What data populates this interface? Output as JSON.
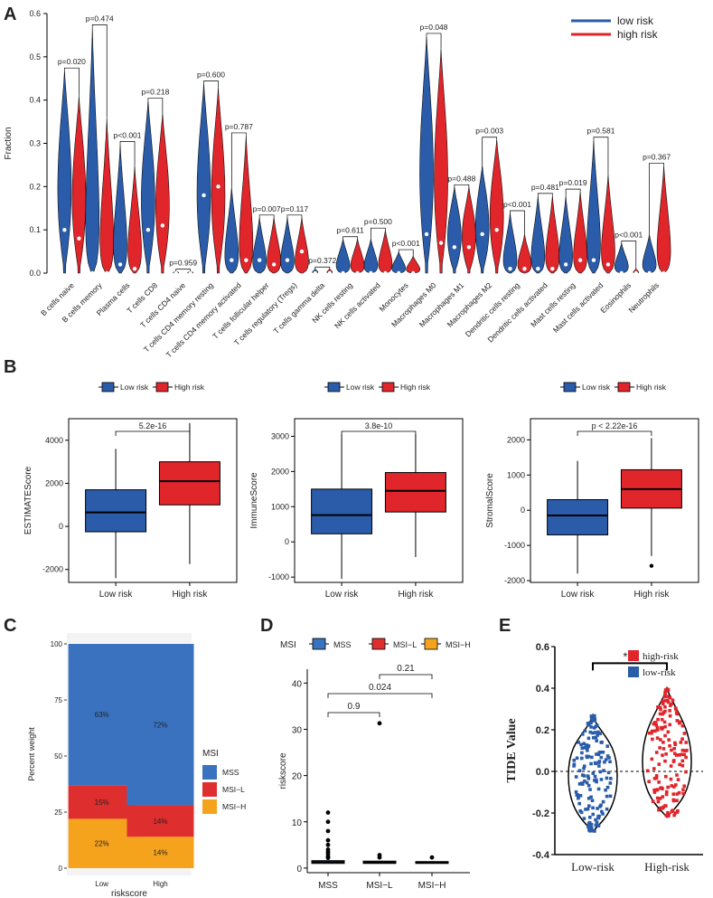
{
  "colors": {
    "low": "#2a5caa",
    "high": "#e0252b",
    "mss": "#3a72c0",
    "msil": "#df2e2e",
    "msih": "#f5a31d",
    "grid": "#e6e6e6",
    "panel_bg": "#f3f3f3"
  },
  "chart_data": [
    {
      "panel": "A",
      "type": "violin",
      "ylabel": "Fraction",
      "ylim": [
        0,
        0.6
      ],
      "yticks": [
        "0.0",
        "0.1",
        "0.2",
        "0.3",
        "0.4",
        "0.5",
        "0.6"
      ],
      "legend": [
        "low  risk",
        "high risk"
      ],
      "categories": [
        "B cells naive",
        "B cells memory",
        "Plasma cells",
        "T cells CD8",
        "T cells CD4 naive",
        "T cells CD4 memory resting",
        "T cells CD4 memory activated",
        "T cells follicular helper",
        "T cells regulatory (Tregs)",
        "T cells gamma delta",
        "NK cells resting",
        "NK cells activated",
        "Monocytes",
        "Macrophages M0",
        "Macrophages M1",
        "Macrophages M2",
        "Dendritic cells resting",
        "Dendritic cells activated",
        "Mast cells resting",
        "Mast cells activated",
        "Eosinophils",
        "Neutrophils"
      ],
      "pvalues": [
        "p=0.020",
        "p=0.474",
        "p<0.001",
        "p=0.218",
        "p=0.959",
        "p=0.600",
        "p=0.787",
        "p=0.007",
        "p=0.117",
        "p=0.372",
        "p=0.611",
        "p=0.500",
        "p<0.001",
        "p=0.048",
        "p=0.488",
        "p=0.003",
        "p<0.001",
        "p=0.481",
        "p=0.019",
        "p=0.581",
        "p<0.001",
        "p=0.367"
      ],
      "series": [
        {
          "name": "low risk",
          "max": [
            0.47,
            0.57,
            0.3,
            0.4,
            0.005,
            0.44,
            0.2,
            0.13,
            0.13,
            0.01,
            0.08,
            0.08,
            0.05,
            0.55,
            0.2,
            0.25,
            0.14,
            0.18,
            0.18,
            0.31,
            0.07,
            0.09
          ],
          "median": [
            0.1,
            0.0,
            0.02,
            0.1,
            0.0,
            0.18,
            0.03,
            0.03,
            0.03,
            0.0,
            0.0,
            0.0,
            0.0,
            0.09,
            0.06,
            0.09,
            0.01,
            0.01,
            0.02,
            0.03,
            0.0,
            0.0
          ]
        },
        {
          "name": "high risk",
          "max": [
            0.41,
            0.36,
            0.25,
            0.37,
            0.005,
            0.43,
            0.32,
            0.13,
            0.13,
            0.01,
            0.08,
            0.1,
            0.04,
            0.52,
            0.2,
            0.31,
            0.09,
            0.18,
            0.19,
            0.23,
            0.01,
            0.25
          ],
          "median": [
            0.08,
            0.0,
            0.01,
            0.11,
            0.0,
            0.2,
            0.03,
            0.02,
            0.05,
            0.0,
            0.0,
            0.0,
            0.0,
            0.07,
            0.06,
            0.1,
            0.01,
            0.01,
            0.03,
            0.02,
            0.0,
            0.0
          ]
        }
      ]
    },
    {
      "panel": "B1",
      "type": "box",
      "ylabel": "ESTIMATEScore",
      "ylim": [
        -2600,
        5000
      ],
      "yticks": [
        -2000,
        0,
        2000,
        4000
      ],
      "categories": [
        "Low risk",
        "High risk"
      ],
      "legend": [
        "Low risk",
        "High risk"
      ],
      "pvalue": "5.2e-16",
      "boxes": [
        {
          "q1": -250,
          "median": 650,
          "q3": 1700,
          "min": -2400,
          "max": 3600
        },
        {
          "q1": 1000,
          "median": 2100,
          "q3": 3000,
          "min": -1750,
          "max": 4800
        }
      ]
    },
    {
      "panel": "B2",
      "type": "box",
      "ylabel": "ImmuneScore",
      "ylim": [
        -1150,
        3500
      ],
      "yticks": [
        -1000,
        0,
        1000,
        2000,
        3000
      ],
      "categories": [
        "Low risk",
        "High risk"
      ],
      "legend": [
        "Low risk",
        "High risk"
      ],
      "pvalue": "3.8e-10",
      "boxes": [
        {
          "q1": 230,
          "median": 760,
          "q3": 1500,
          "min": -1050,
          "max": 3050
        },
        {
          "q1": 850,
          "median": 1450,
          "q3": 1970,
          "min": -430,
          "max": 3050
        }
      ]
    },
    {
      "panel": "B3",
      "type": "box",
      "ylabel": "StromalScore",
      "ylim": [
        -2050,
        2600
      ],
      "yticks": [
        -2000,
        -1000,
        0,
        1000,
        2000
      ],
      "categories": [
        "Low risk",
        "High risk"
      ],
      "legend": [
        "Low risk",
        "High risk"
      ],
      "pvalue": "p < 2.22e-16",
      "boxes": [
        {
          "q1": -700,
          "median": -150,
          "q3": 300,
          "min": -1800,
          "max": 1400
        },
        {
          "q1": 60,
          "median": 600,
          "q3": 1150,
          "min": -1300,
          "max": 2050,
          "outliers": [
            -1580
          ]
        }
      ]
    },
    {
      "panel": "C",
      "type": "stacked_bar",
      "xlabel": "riskscore",
      "ylabel": "Percent weight",
      "ylim": [
        0,
        100
      ],
      "yticks": [
        0,
        25,
        50,
        75,
        100
      ],
      "categories": [
        "Low",
        "High"
      ],
      "legend_title": "MSI",
      "legend": [
        "MSS",
        "MSI−L",
        "MSI−H"
      ],
      "series": [
        {
          "name": "MSI-H",
          "values": [
            22,
            14
          ],
          "labels": [
            "22%",
            "14%"
          ]
        },
        {
          "name": "MSI-L",
          "values": [
            15,
            14
          ],
          "labels": [
            "15%",
            "14%"
          ]
        },
        {
          "name": "MSS",
          "values": [
            63,
            72
          ],
          "labels": [
            "63%",
            "72%"
          ]
        }
      ]
    },
    {
      "panel": "D",
      "type": "box",
      "ylabel": "riskscore",
      "ylim": [
        -1,
        43
      ],
      "yticks": [
        0,
        10,
        20,
        30,
        40
      ],
      "categories": [
        "MSS",
        "MSI−L",
        "MSI−H"
      ],
      "legend_title": "MSI",
      "legend": [
        "MSS",
        "MSI−L",
        "MSI−H"
      ],
      "comparisons": [
        {
          "pair": [
            1,
            2
          ],
          "label": "0.9"
        },
        {
          "pair": [
            1,
            3
          ],
          "label": "0.024"
        },
        {
          "pair": [
            2,
            3
          ],
          "label": "0.21"
        }
      ],
      "boxes": [
        {
          "q1": 1.0,
          "median": 1.3,
          "q3": 1.6,
          "outliers": [
            12,
            10,
            8,
            6,
            5,
            4,
            3.5,
            3,
            2.5,
            2.2
          ]
        },
        {
          "q1": 1.0,
          "median": 1.2,
          "q3": 1.5,
          "outliers": [
            31.3,
            2.8,
            2.3
          ]
        },
        {
          "q1": 1.0,
          "median": 1.2,
          "q3": 1.4,
          "outliers": [
            2.3
          ]
        }
      ]
    },
    {
      "panel": "E",
      "type": "violin",
      "ylabel": "TIDE Value",
      "ylim": [
        -0.4,
        0.6
      ],
      "yticks": [
        "-0.4",
        "-0.2",
        "0.0",
        "0.2",
        "0.4",
        "0.6"
      ],
      "categories": [
        "Low-risk",
        "High-risk"
      ],
      "legend": [
        "high-risk",
        "low-risk"
      ],
      "significance": "***",
      "series": [
        {
          "name": "low-risk",
          "min": -0.29,
          "max": 0.27,
          "center": -0.02
        },
        {
          "name": "high-risk",
          "min": -0.22,
          "max": 0.4,
          "center": 0.05
        }
      ]
    }
  ],
  "panel_labels": {
    "A": "A",
    "B": "B",
    "C": "C",
    "D": "D",
    "E": "E"
  }
}
